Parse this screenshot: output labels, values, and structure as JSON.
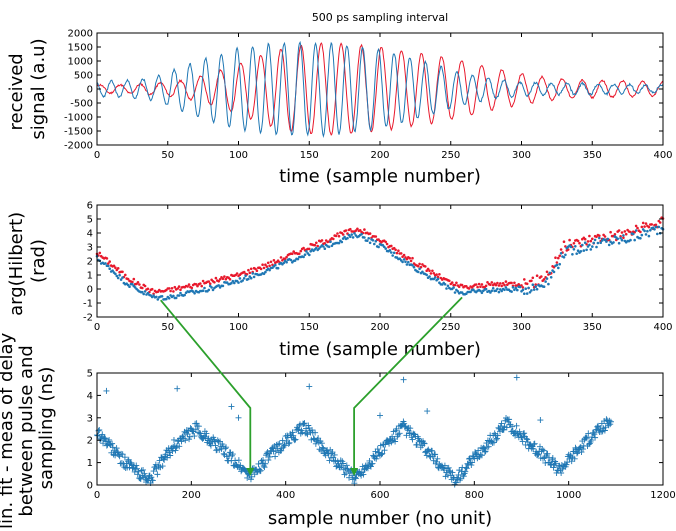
{
  "colors": {
    "red": "#e8192c",
    "blue": "#1f77b4",
    "green": "#2ca02c",
    "axis": "#000000"
  },
  "chart_data": [
    {
      "type": "line",
      "title": "500 ps sampling interval",
      "xlabel": "time (sample number)",
      "ylabel": "received signal (a.u)",
      "xlim": [
        0,
        400
      ],
      "ylim": [
        -2000,
        2000
      ],
      "xticks": [
        0,
        50,
        100,
        150,
        200,
        250,
        300,
        350,
        400
      ],
      "yticks": [
        -2000,
        -1500,
        -1000,
        -500,
        0,
        500,
        1000,
        1500,
        2000
      ],
      "grid": false,
      "series": [
        {
          "color": "red",
          "description": "oscillating signal, ~14 sample period, Gaussian envelope peaking ~1650 near sample 165",
          "x": [
            0,
            20,
            40,
            60,
            80,
            100,
            120,
            140,
            160,
            180,
            200,
            220,
            240,
            260,
            280,
            300,
            320,
            340,
            360,
            380,
            400
          ],
          "envelope": [
            150,
            150,
            200,
            300,
            550,
            900,
            1300,
            1550,
            1650,
            1600,
            1500,
            1350,
            1200,
            1000,
            750,
            550,
            400,
            320,
            300,
            280,
            250
          ]
        },
        {
          "color": "blue",
          "description": "oscillating signal, ~11 sample period, Gaussian envelope peaking ~1650 near sample 150",
          "x": [
            0,
            20,
            40,
            60,
            80,
            100,
            120,
            140,
            160,
            180,
            200,
            220,
            240,
            260,
            280,
            300,
            320,
            340,
            360,
            380,
            400
          ],
          "envelope": [
            250,
            300,
            400,
            800,
            1150,
            1450,
            1600,
            1650,
            1650,
            1550,
            1400,
            1150,
            850,
            550,
            350,
            250,
            200,
            200,
            180,
            150,
            130
          ]
        }
      ]
    },
    {
      "type": "scatter",
      "xlabel": "time (sample number)",
      "ylabel": "arg(Hilbert) (rad)",
      "xlim": [
        0,
        400
      ],
      "ylim": [
        -2,
        6
      ],
      "xticks": [
        0,
        50,
        100,
        150,
        200,
        250,
        300,
        350,
        400
      ],
      "yticks": [
        -2,
        -1,
        0,
        1,
        2,
        3,
        4,
        5,
        6
      ],
      "grid": false,
      "series": [
        {
          "color": "red",
          "x": [
            0,
            10,
            20,
            30,
            40,
            50,
            75,
            100,
            125,
            150,
            175,
            185,
            200,
            225,
            250,
            260,
            275,
            300,
            310,
            320,
            330,
            350,
            375,
            400
          ],
          "y": [
            2.6,
            1.8,
            0.9,
            0.3,
            -0.2,
            -0.1,
            0.4,
            1.0,
            1.9,
            3.0,
            4.0,
            4.3,
            3.5,
            1.9,
            0.4,
            0.1,
            0.3,
            0.4,
            0.5,
            1.2,
            3.0,
            3.6,
            4.0,
            4.8
          ]
        },
        {
          "color": "blue",
          "x": [
            0,
            10,
            20,
            30,
            40,
            50,
            75,
            100,
            125,
            150,
            175,
            185,
            200,
            225,
            250,
            260,
            275,
            300,
            310,
            320,
            330,
            350,
            375,
            400
          ],
          "y": [
            2.2,
            1.4,
            0.5,
            -0.1,
            -0.6,
            -0.6,
            -0.1,
            0.6,
            1.5,
            2.6,
            3.6,
            3.9,
            3.1,
            1.5,
            0.0,
            -0.3,
            -0.1,
            0.0,
            0.1,
            0.8,
            2.6,
            3.2,
            3.6,
            4.4
          ]
        }
      ]
    },
    {
      "type": "scatter",
      "marker": "+",
      "xlabel": "sample number (no unit)",
      "ylabel": "lin. fit - meas of delay between pulse and sampling (ns)",
      "xlim": [
        0,
        1200
      ],
      "ylim": [
        0,
        5
      ],
      "xticks": [
        0,
        200,
        400,
        600,
        800,
        1000,
        1200
      ],
      "yticks": [
        0,
        1,
        2,
        3,
        4,
        5
      ],
      "grid": false,
      "series": [
        {
          "color": "blue",
          "x": [
            0,
            50,
            110,
            160,
            210,
            260,
            325,
            380,
            440,
            490,
            545,
            600,
            650,
            700,
            760,
            810,
            870,
            920,
            980,
            1040,
            1090
          ],
          "y": [
            2.4,
            1.2,
            0.2,
            1.7,
            2.5,
            1.7,
            0.4,
            1.6,
            2.6,
            1.4,
            0.3,
            1.5,
            2.6,
            1.5,
            0.2,
            1.4,
            2.8,
            1.8,
            0.7,
            2.0,
            2.9
          ],
          "outliers": [
            [
              20,
              4.2
            ],
            [
              170,
              4.3
            ],
            [
              285,
              3.5
            ],
            [
              300,
              3.0
            ],
            [
              450,
              4.4
            ],
            [
              600,
              3.1
            ],
            [
              650,
              4.7
            ],
            [
              700,
              3.3
            ],
            [
              890,
              4.8
            ],
            [
              940,
              2.9
            ]
          ]
        }
      ],
      "annotations": [
        {
          "type": "arrow",
          "color": "green",
          "from_chart": 1,
          "from_point": [
            45,
            -0.8
          ],
          "to_chart": 2,
          "to_point": [
            325,
            0.4
          ]
        },
        {
          "type": "arrow",
          "color": "green",
          "from_chart": 1,
          "from_point": [
            258,
            -0.6
          ],
          "to_chart": 2,
          "to_point": [
            545,
            0.4
          ]
        }
      ]
    }
  ]
}
